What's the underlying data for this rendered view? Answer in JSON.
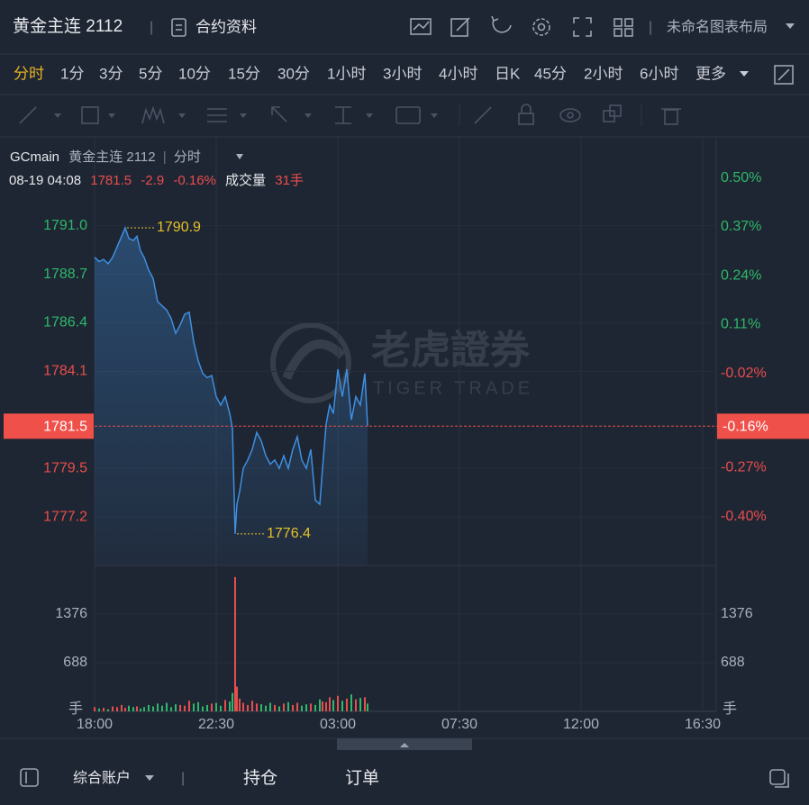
{
  "header": {
    "title": "黄金主连 2112",
    "contract_info": "合约资料",
    "layout_name": "未命名图表布局"
  },
  "tabs": [
    "分时",
    "1分",
    "3分",
    "5分",
    "10分",
    "15分",
    "30分",
    "1小时",
    "3小时",
    "4小时",
    "日K",
    "45分",
    "2小时",
    "6小时",
    "更多"
  ],
  "active_tab": 0,
  "legend": {
    "symbol": "GCmain",
    "name": "黄金主连 2112",
    "interval": "分时"
  },
  "info": {
    "date": "08-19 04:08",
    "price": 1781.5,
    "change": -2.9,
    "change_pct": "-0.16%",
    "volume_label": "成交量",
    "volume": "31手"
  },
  "watermark": {
    "cn": "老虎證券",
    "en": "TIGER TRADE"
  },
  "footer": {
    "account": "综合账户",
    "positions": "持仓",
    "orders": "订单"
  },
  "chart_data": [
    {
      "type": "line",
      "color": "#3d8fe0",
      "up_color": "#2db86a",
      "down_color": "#e84d4d",
      "x": [
        0,
        10,
        20,
        30,
        40,
        50,
        60,
        68,
        76,
        86,
        94,
        102,
        110,
        120,
        130,
        140,
        150,
        160,
        170,
        180,
        190,
        200,
        210,
        220,
        230,
        240,
        250,
        260,
        270,
        280,
        290,
        300,
        306,
        312,
        316,
        322,
        330,
        340,
        350,
        360,
        370,
        380,
        390,
        400,
        410,
        420,
        430,
        440,
        450,
        460,
        470,
        480,
        490,
        500,
        506,
        514,
        522,
        530,
        540,
        550,
        560,
        570,
        580,
        590,
        600,
        606
      ],
      "values": [
        1789.5,
        1789.3,
        1789.4,
        1789.2,
        1789.5,
        1790.0,
        1790.5,
        1790.9,
        1790.4,
        1790.3,
        1790.5,
        1789.8,
        1789.5,
        1788.9,
        1788.5,
        1787.4,
        1787.2,
        1787.0,
        1786.6,
        1785.9,
        1786.3,
        1786.8,
        1786.9,
        1785.5,
        1784.6,
        1784.0,
        1783.8,
        1783.9,
        1782.9,
        1782.5,
        1782.9,
        1782.1,
        1781.4,
        1776.4,
        1777.8,
        1778.4,
        1779.5,
        1779.9,
        1780.4,
        1781.2,
        1780.8,
        1780.1,
        1779.7,
        1779.9,
        1779.5,
        1780.1,
        1779.5,
        1780.4,
        1781.0,
        1779.9,
        1779.5,
        1780.4,
        1778.0,
        1777.8,
        1779.5,
        1781.6,
        1782.5,
        1782.1,
        1784.2,
        1782.9,
        1784.2,
        1781.8,
        1782.9,
        1782.5,
        1784.0,
        1781.5
      ],
      "xlim": [
        0,
        1380
      ],
      "xticks": [
        {
          "value": 0,
          "label": "18:00"
        },
        {
          "value": 270,
          "label": "22:30"
        },
        {
          "value": 540,
          "label": "03:00"
        },
        {
          "value": 810,
          "label": "07:30"
        },
        {
          "value": 1080,
          "label": "12:00"
        },
        {
          "value": 1350,
          "label": "16:30"
        }
      ],
      "ylim": [
        1774.9,
        1793.8
      ],
      "yticks": [
        {
          "value": 1791,
          "label": "1791.0"
        },
        1788.7,
        1786.4,
        1784.1,
        1779.5,
        1777.2
      ],
      "y2lim": [
        -0.53,
        0.53
      ],
      "y2ticks": [
        {
          "value": 0.5,
          "label": "0.50%"
        },
        {
          "value": 0.37,
          "label": "0.37%"
        },
        {
          "value": 0.24,
          "label": "0.24%"
        },
        {
          "value": 0.11,
          "label": "0.11%"
        },
        {
          "value": -0.02,
          "label": "-0.02%"
        },
        {
          "value": -0.27,
          "label": "-0.27%"
        },
        {
          "value": -0.4,
          "label": "-0.40%"
        }
      ],
      "high": {
        "x": 68,
        "value": 1790.9
      },
      "low": {
        "x": 312,
        "value": 1776.4
      },
      "last": {
        "value": 1781.5,
        "pct": {
          "value": -0.16,
          "label": "-0.16%"
        }
      },
      "grid": true
    },
    {
      "type": "bar",
      "unit": "手",
      "x": [
        0,
        10,
        20,
        30,
        40,
        50,
        60,
        68,
        76,
        86,
        94,
        102,
        110,
        120,
        130,
        140,
        150,
        160,
        170,
        180,
        190,
        200,
        210,
        220,
        230,
        240,
        250,
        260,
        270,
        280,
        290,
        300,
        306,
        312,
        316,
        322,
        330,
        340,
        350,
        360,
        370,
        380,
        390,
        400,
        410,
        420,
        430,
        440,
        450,
        460,
        470,
        480,
        490,
        500,
        506,
        514,
        522,
        530,
        540,
        550,
        560,
        570,
        580,
        590,
        600,
        606
      ],
      "values": [
        60,
        40,
        50,
        30,
        70,
        60,
        90,
        50,
        80,
        60,
        70,
        40,
        60,
        90,
        70,
        110,
        80,
        120,
        60,
        100,
        90,
        80,
        150,
        110,
        130,
        70,
        90,
        110,
        120,
        80,
        160,
        140,
        260,
        1900,
        350,
        180,
        120,
        90,
        150,
        110,
        100,
        80,
        120,
        90,
        70,
        110,
        130,
        90,
        120,
        80,
        100,
        110,
        90,
        170,
        140,
        130,
        200,
        160,
        220,
        150,
        180,
        240,
        170,
        190,
        200,
        110
      ],
      "colors": [
        "#e84d4d",
        "#2db86a",
        "#e84d4d",
        "#2db86a",
        "#e84d4d",
        "#e84d4d",
        "#e84d4d",
        "#e84d4d",
        "#2db86a",
        "#2db86a",
        "#e84d4d",
        "#2db86a",
        "#2db86a",
        "#2db86a",
        "#2db86a",
        "#2db86a",
        "#2db86a",
        "#2db86a",
        "#2db86a",
        "#2db86a",
        "#e84d4d",
        "#e84d4d",
        "#e84d4d",
        "#2db86a",
        "#2db86a",
        "#2db86a",
        "#2db86a",
        "#e84d4d",
        "#2db86a",
        "#2db86a",
        "#e84d4d",
        "#2db86a",
        "#2db86a",
        "#e84d4d",
        "#e84d4d",
        "#e84d4d",
        "#e84d4d",
        "#e84d4d",
        "#e84d4d",
        "#e84d4d",
        "#2db86a",
        "#2db86a",
        "#2db86a",
        "#e84d4d",
        "#2db86a",
        "#e84d4d",
        "#2db86a",
        "#e84d4d",
        "#e84d4d",
        "#2db86a",
        "#2db86a",
        "#e84d4d",
        "#2db86a",
        "#2db86a",
        "#e84d4d",
        "#e84d4d",
        "#e84d4d",
        "#2db86a",
        "#e84d4d",
        "#2db86a",
        "#e84d4d",
        "#2db86a",
        "#e84d4d",
        "#2db86a",
        "#e84d4d",
        "#2db86a"
      ],
      "xlim": [
        0,
        1380
      ],
      "ylim": [
        0,
        1911
      ],
      "yticks": [
        688,
        1376
      ]
    }
  ]
}
